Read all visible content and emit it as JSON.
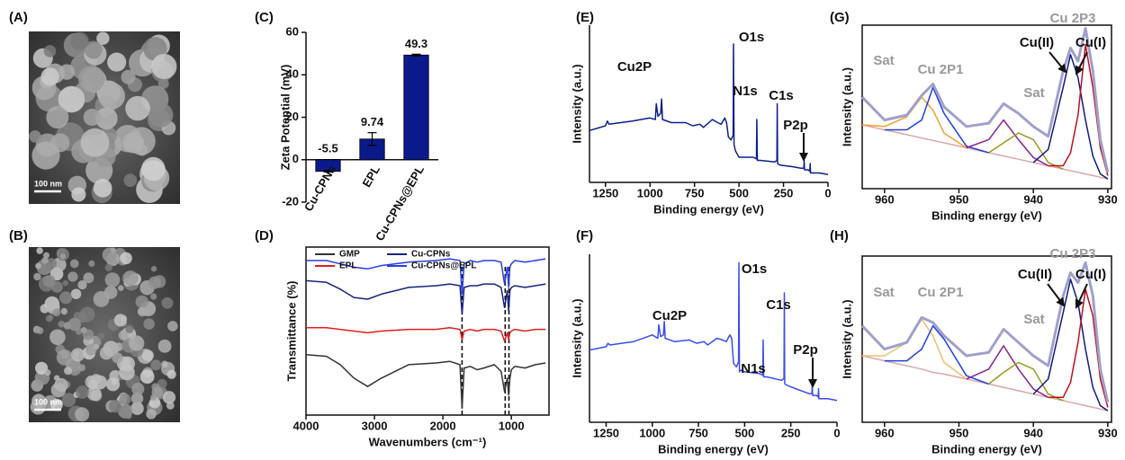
{
  "images": [
    {
      "panel": "(A)",
      "scale_bar": "100 nm"
    },
    {
      "panel": "(B)",
      "scale_bar": "100 nm"
    }
  ],
  "chart_data": [
    {
      "panel": "(C)",
      "type": "bar",
      "ylabel": "Zeta Potential (mV)",
      "categories": [
        "Cu-CPNs",
        "EPL",
        "Cu-CPNs@EPL"
      ],
      "values": [
        -5.5,
        9.74,
        49.3
      ],
      "errors": [
        0.3,
        3,
        0.4
      ],
      "color": "#0a1a8a",
      "ylim": [
        -20,
        60
      ],
      "yticks": [
        -20,
        0,
        20,
        40,
        60
      ]
    },
    {
      "panel": "(D)",
      "type": "line",
      "xlabel": "Wavenumbers (cm⁻¹)",
      "ylabel": "Transmittance (%)",
      "x": [
        4000,
        3700,
        3500,
        3300,
        3100,
        2900,
        2500,
        2100,
        1900,
        1750,
        1720,
        1690,
        1600,
        1500,
        1400,
        1250,
        1150,
        1100,
        1060,
        1040,
        1020,
        1000,
        950,
        800,
        650,
        500
      ],
      "xlim": [
        4000,
        450
      ],
      "xticks": [
        4000,
        3000,
        2000,
        1000
      ],
      "ylim": [
        0,
        100
      ],
      "vlines": [
        1720,
        1090,
        1035
      ],
      "series": [
        {
          "name": "GMP",
          "color": "#333333",
          "values": [
            36,
            35,
            30,
            22,
            17,
            22,
            30,
            31,
            32,
            30,
            4,
            28,
            29,
            27,
            28,
            30,
            26,
            14,
            22,
            12,
            22,
            27,
            29,
            28,
            30,
            31
          ]
        },
        {
          "name": "EPL",
          "color": "#e02020",
          "values": [
            52,
            52,
            51,
            50,
            49,
            50,
            51,
            51,
            52,
            51,
            45,
            50,
            51,
            50,
            51,
            51,
            50,
            44,
            49,
            45,
            49,
            50,
            51,
            50,
            51,
            51
          ]
        },
        {
          "name": "Cu-CPNs",
          "color": "#1a237e",
          "values": [
            80,
            79,
            75,
            70,
            69,
            72,
            76,
            77,
            78,
            77,
            60,
            76,
            77,
            77,
            78,
            78,
            76,
            64,
            74,
            62,
            74,
            76,
            77,
            76,
            77,
            78
          ]
        },
        {
          "name": "Cu-CPNs@EPL",
          "color": "#2a3ee0",
          "values": [
            92,
            92,
            90,
            88,
            87,
            89,
            91,
            92,
            93,
            92,
            72,
            90,
            92,
            91,
            92,
            92,
            91,
            78,
            88,
            76,
            88,
            90,
            92,
            91,
            92,
            93
          ]
        }
      ]
    },
    {
      "panel": "(E)",
      "type": "line",
      "xlabel": "Binding energy (eV)",
      "ylabel": "Intensity (a.u.)",
      "x": [
        1340,
        1250,
        1240,
        1230,
        1100,
        1000,
        970,
        965,
        955,
        940,
        935,
        930,
        880,
        800,
        760,
        720,
        700,
        650,
        620,
        600,
        580,
        570,
        560,
        545,
        533,
        531,
        528,
        520,
        500,
        420,
        402,
        400,
        397,
        380,
        300,
        287,
        285,
        283,
        270,
        200,
        150,
        136,
        134,
        132,
        110,
        102,
        100,
        98,
        50,
        0
      ],
      "xlim": [
        1340,
        0
      ],
      "xticks": [
        1250,
        1000,
        750,
        500,
        250,
        0
      ],
      "ylim": [
        0,
        100
      ],
      "series": [
        {
          "color": "#0d1f8f",
          "values": [
            33,
            36,
            39,
            37,
            39,
            41,
            40,
            50,
            42,
            44,
            53,
            40,
            38,
            38,
            36,
            37,
            35,
            40,
            38,
            37,
            41,
            38,
            29,
            27,
            30,
            88,
            24,
            20,
            16,
            16,
            15,
            40,
            14,
            14,
            13,
            14,
            50,
            12,
            11,
            10,
            9,
            9,
            14,
            8,
            8,
            7,
            12,
            6,
            6,
            5
          ]
        }
      ],
      "annotations": [
        "Cu2P",
        "O1s",
        "N1s",
        "C1s",
        "P2p"
      ]
    },
    {
      "panel": "(F)",
      "type": "line",
      "xlabel": "Binding energy (eV)",
      "ylabel": "Intensity (a.u.)",
      "x": [
        1340,
        1250,
        1240,
        1230,
        1100,
        1000,
        970,
        965,
        955,
        940,
        935,
        930,
        880,
        800,
        760,
        720,
        700,
        650,
        620,
        600,
        580,
        570,
        560,
        545,
        533,
        531,
        528,
        520,
        500,
        420,
        402,
        400,
        397,
        380,
        300,
        287,
        285,
        283,
        270,
        200,
        150,
        136,
        134,
        132,
        110,
        102,
        100,
        98,
        50,
        0
      ],
      "xlim": [
        1340,
        0
      ],
      "xticks": [
        1250,
        1000,
        750,
        500,
        250,
        0
      ],
      "ylim": [
        0,
        100
      ],
      "series": [
        {
          "color": "#3b4cf0",
          "values": [
            43,
            45,
            47,
            46,
            48,
            52,
            50,
            58,
            51,
            52,
            60,
            50,
            48,
            49,
            47,
            48,
            46,
            50,
            49,
            48,
            52,
            50,
            35,
            33,
            36,
            95,
            30,
            31,
            30,
            29,
            28,
            49,
            27,
            27,
            25,
            26,
            77,
            23,
            22,
            19,
            17,
            17,
            22,
            16,
            16,
            15,
            20,
            14,
            14,
            13
          ]
        }
      ],
      "annotations": [
        "Cu2P",
        "O1s",
        "N1s",
        "C1s",
        "P2p"
      ]
    },
    {
      "panel": "(G)",
      "type": "line",
      "xlabel": "Binding energy (eV)",
      "ylabel": "Intensity (a.u.)",
      "x": [
        963,
        960,
        957,
        955,
        953.5,
        952,
        949,
        946,
        944,
        942,
        940,
        938,
        936,
        935,
        934,
        933,
        932,
        931,
        930
      ],
      "xlim": [
        963,
        929.5
      ],
      "xticks": [
        960,
        950,
        940,
        930
      ],
      "ylim": [
        0,
        100
      ],
      "series": [
        {
          "color": "#d9a9a9",
          "values": [
            39,
            36,
            33,
            31,
            29.5,
            28,
            25,
            22,
            20,
            18,
            16,
            14,
            12,
            11,
            10,
            9,
            8,
            7,
            6
          ]
        },
        {
          "color": "#f0a030",
          "values": [
            39,
            38,
            44,
            56,
            48,
            34,
            25,
            null,
            null,
            null,
            null,
            null,
            null,
            null,
            null,
            null,
            null,
            null,
            null
          ]
        },
        {
          "color": "#2040e0",
          "values": [
            null,
            36,
            36,
            42,
            62,
            46,
            26,
            22,
            null,
            null,
            null,
            null,
            null,
            null,
            null,
            null,
            null,
            null,
            null
          ]
        },
        {
          "color": "#8a2090",
          "values": [
            null,
            null,
            null,
            null,
            null,
            null,
            25,
            30,
            42,
            30,
            19,
            14,
            null,
            null,
            null,
            null,
            null,
            null,
            null
          ]
        },
        {
          "color": "#9a9a20",
          "values": [
            null,
            null,
            null,
            null,
            null,
            null,
            null,
            22,
            28,
            34,
            30,
            16,
            12,
            null,
            null,
            null,
            null,
            null,
            null
          ]
        },
        {
          "color": "#101a80",
          "values": [
            null,
            null,
            null,
            null,
            null,
            null,
            null,
            null,
            null,
            null,
            16,
            24,
            62,
            82,
            68,
            42,
            20,
            9,
            6
          ]
        },
        {
          "color": "#c01020",
          "values": [
            null,
            null,
            null,
            null,
            null,
            null,
            null,
            null,
            null,
            null,
            null,
            14,
            14,
            22,
            45,
            88,
            62,
            25,
            8
          ]
        },
        {
          "color": "#a0a0cc",
          "values": [
            56,
            42,
            45,
            57,
            64,
            50,
            38,
            40,
            52,
            46,
            38,
            32,
            72,
            86,
            78,
            98,
            72,
            30,
            10
          ]
        }
      ],
      "annotations": [
        {
          "text": "Sat",
          "color": "#999999"
        },
        {
          "text": "Cu 2P1",
          "color": "#999999"
        },
        {
          "text": "Sat",
          "color": "#999999"
        },
        {
          "text": "Cu 2P3",
          "color": "#999999"
        },
        {
          "text": "Cu(II)",
          "color": "#111111"
        },
        {
          "text": "Cu(I)",
          "color": "#111111"
        }
      ]
    },
    {
      "panel": "(H)",
      "type": "line",
      "xlabel": "Binding energy (eV)",
      "ylabel": "Intensity (a.u.)",
      "x": [
        963,
        960,
        957,
        955,
        953.5,
        952,
        949,
        946,
        944,
        942,
        940,
        938,
        936,
        935,
        934,
        933,
        932,
        931,
        930
      ],
      "xlim": [
        963,
        929.5
      ],
      "xticks": [
        960,
        950,
        940,
        930
      ],
      "ylim": [
        0,
        100
      ],
      "series": [
        {
          "color": "#d9a9a9",
          "values": [
            40,
            37,
            34,
            32,
            30,
            29,
            26,
            23,
            21,
            19,
            17,
            15,
            13,
            12,
            11,
            10,
            9,
            8,
            7
          ]
        },
        {
          "color": "#f0c070",
          "values": [
            40,
            40,
            48,
            62,
            52,
            36,
            26,
            null,
            null,
            null,
            null,
            null,
            null,
            null,
            null,
            null,
            null,
            null,
            null
          ]
        },
        {
          "color": "#2040e0",
          "values": [
            null,
            37,
            37,
            44,
            58,
            50,
            28,
            23,
            null,
            null,
            null,
            null,
            null,
            null,
            null,
            null,
            null,
            null,
            null
          ]
        },
        {
          "color": "#8a2090",
          "values": [
            null,
            null,
            null,
            null,
            null,
            null,
            26,
            32,
            46,
            32,
            20,
            15,
            null,
            null,
            null,
            null,
            null,
            null,
            null
          ]
        },
        {
          "color": "#9a9a20",
          "values": [
            null,
            null,
            null,
            null,
            null,
            null,
            null,
            23,
            30,
            36,
            32,
            17,
            13,
            null,
            null,
            null,
            null,
            null,
            null
          ]
        },
        {
          "color": "#101a80",
          "values": [
            null,
            null,
            null,
            null,
            null,
            null,
            null,
            null,
            null,
            null,
            17,
            26,
            66,
            86,
            72,
            44,
            21,
            10,
            7
          ]
        },
        {
          "color": "#c01020",
          "values": [
            null,
            null,
            null,
            null,
            null,
            null,
            null,
            null,
            null,
            null,
            null,
            15,
            15,
            24,
            48,
            80,
            64,
            26,
            9
          ]
        },
        {
          "color": "#a0a0cc",
          "values": [
            58,
            44,
            48,
            63,
            60,
            52,
            40,
            42,
            56,
            48,
            40,
            34,
            76,
            90,
            84,
            96,
            76,
            32,
            12
          ]
        }
      ],
      "annotations": [
        {
          "text": "Sat",
          "color": "#999999"
        },
        {
          "text": "Cu 2P1",
          "color": "#999999"
        },
        {
          "text": "Sat",
          "color": "#999999"
        },
        {
          "text": "Cu 2P3",
          "color": "#999999"
        },
        {
          "text": "Cu(II)",
          "color": "#111111"
        },
        {
          "text": "Cu(I)",
          "color": "#111111"
        }
      ]
    }
  ]
}
